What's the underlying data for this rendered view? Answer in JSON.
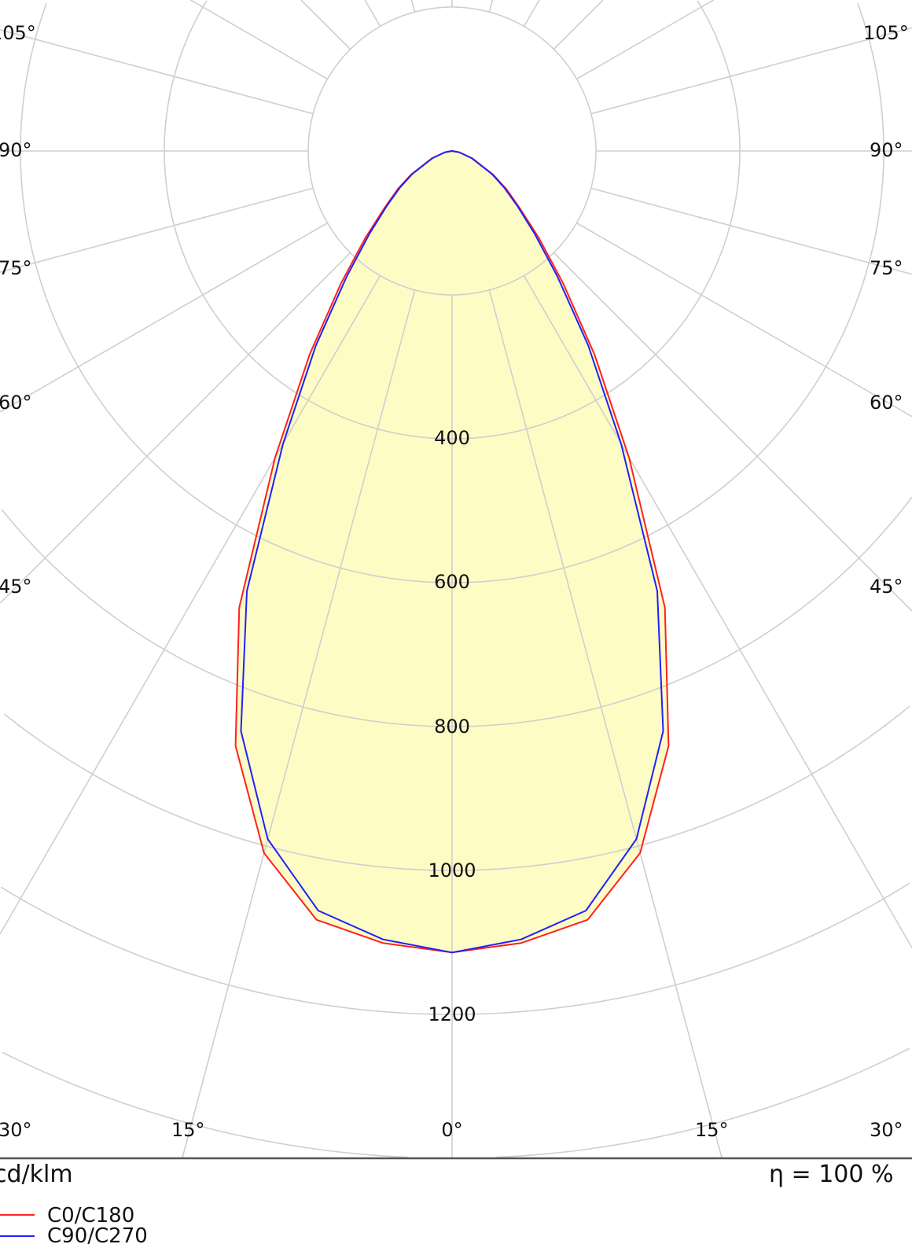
{
  "chart_data": {
    "type": "polar",
    "unit_label": "cd/klm",
    "efficiency_label": "η = 100 %",
    "radial_ticks": [
      200,
      400,
      600,
      800,
      1000,
      1200,
      1400,
      1600
    ],
    "radial_tick_labels": [
      "400",
      "600",
      "800",
      "1000",
      "1200"
    ],
    "angle_labels_left": [
      "105°",
      "90°",
      "75°",
      "60°",
      "45°",
      "30°",
      "15°"
    ],
    "angle_labels_bottom": [
      "0°"
    ],
    "angle_labels_right": [
      "15°",
      "30°",
      "45°",
      "60°",
      "75°",
      "90°",
      "105°"
    ],
    "grid": true,
    "fill_color": "#fdfcc4",
    "angles": [
      0,
      5,
      10,
      15,
      20,
      25,
      30,
      35,
      40,
      45,
      50,
      55,
      60,
      70,
      80,
      90
    ],
    "series": [
      {
        "name": "C0/C180",
        "color": "#ff2020",
        "values": [
          1114,
          1105,
          1085,
          1010,
          880,
          700,
          492,
          345,
          240,
          170,
          122,
          92,
          66,
          30,
          10,
          0
        ]
      },
      {
        "name": "C90/C270",
        "color": "#2020ff",
        "values": [
          1114,
          1100,
          1072,
          990,
          858,
          675,
          470,
          330,
          228,
          162,
          118,
          88,
          64,
          29,
          10,
          0
        ]
      }
    ],
    "legend_position": "bottom-left"
  }
}
